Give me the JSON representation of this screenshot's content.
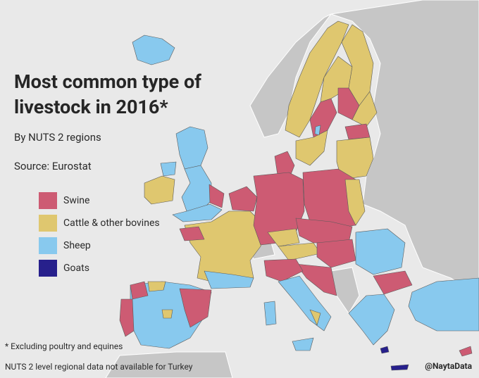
{
  "title": "Most common type of livestock in 2016*",
  "subtitle": "By NUTS 2 regions",
  "source": "Source: Eurostat",
  "legend": [
    {
      "label": "Swine",
      "color": "#cd5b73"
    },
    {
      "label": "Cattle & other bovines",
      "color": "#dfc76f"
    },
    {
      "label": "Sheep",
      "color": "#88c9ee"
    },
    {
      "label": "Goats",
      "color": "#27208c"
    }
  ],
  "footnote": "* Excluding poultry and equines",
  "note": "NUTS 2 level regional data not available for Turkey",
  "credit": "@NaytaData"
}
